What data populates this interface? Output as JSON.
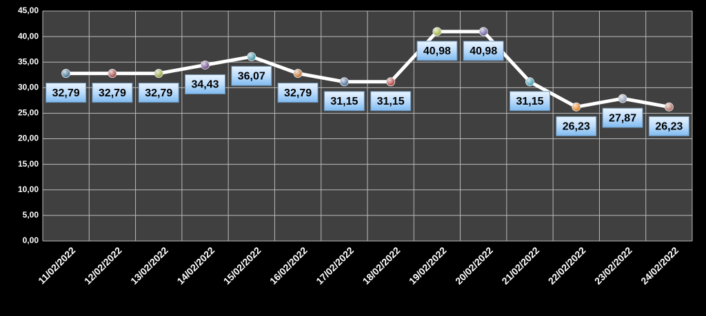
{
  "chart_data": {
    "type": "line",
    "categories": [
      "11/02/2022",
      "12/02/2022",
      "13/02/2022",
      "14/02/2022",
      "15/02/2022",
      "16/02/2022",
      "17/02/2022",
      "18/02/2022",
      "19/02/2022",
      "20/02/2022",
      "21/02/2022",
      "22/02/2022",
      "23/02/2022",
      "24/02/2022"
    ],
    "values": [
      32.79,
      32.79,
      32.79,
      34.43,
      36.07,
      32.79,
      31.15,
      31.15,
      40.98,
      40.98,
      31.15,
      26.23,
      27.87,
      26.23
    ],
    "value_labels": [
      "32,79",
      "32,79",
      "32,79",
      "34,43",
      "36,07",
      "32,79",
      "31,15",
      "31,15",
      "40,98",
      "40,98",
      "31,15",
      "26,23",
      "27,87",
      "26,23"
    ],
    "color": "#ffffff",
    "marker_colors": [
      "#3a6f8f",
      "#a04040",
      "#9aa040",
      "#6a4a8a",
      "#3a8fa0",
      "#c07030",
      "#4a6a9a",
      "#b03a3a",
      "#a0b040",
      "#6a5a9a",
      "#3a9ab0",
      "#e08020",
      "#8a9ab0",
      "#b07060"
    ],
    "ylim": [
      0,
      45
    ],
    "yticks": [
      {
        "value": 0,
        "label": "0,00"
      },
      {
        "value": 5,
        "label": "5,00"
      },
      {
        "value": 10,
        "label": "10,00"
      },
      {
        "value": 15,
        "label": "15,00"
      },
      {
        "value": 20,
        "label": "20,00"
      },
      {
        "value": 25,
        "label": "25,00"
      },
      {
        "value": 30,
        "label": "30,00"
      },
      {
        "value": 35,
        "label": "35,00"
      },
      {
        "value": 40,
        "label": "40,00"
      },
      {
        "value": 45,
        "label": "45,00"
      }
    ],
    "grid": true
  }
}
